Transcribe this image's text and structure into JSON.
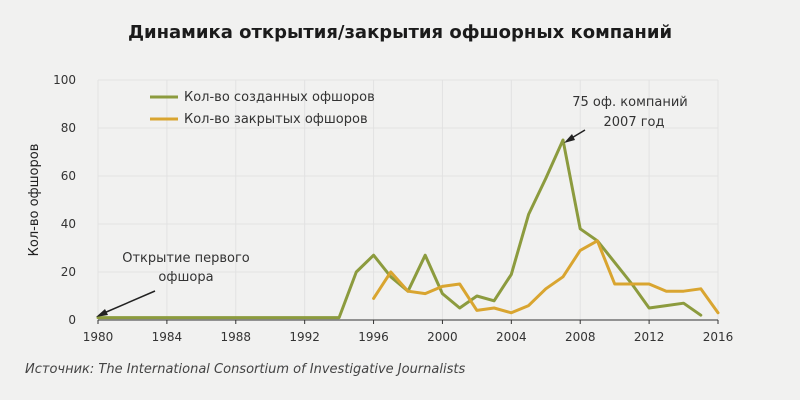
{
  "chart_data": {
    "type": "line",
    "title": "Динамика открытия/закрытия офшорных компаний",
    "ylabel": "Кол-во офшоров",
    "xlabel": "",
    "xlim": [
      1980,
      2016
    ],
    "ylim": [
      0,
      100
    ],
    "xticks": [
      "1980",
      "1984",
      "1988",
      "1992",
      "1996",
      "2000",
      "2004",
      "2008",
      "2012",
      "2016"
    ],
    "yticks": [
      "0",
      "20",
      "40",
      "60",
      "80",
      "100"
    ],
    "grid": true,
    "legend_position": "top-left",
    "series": [
      {
        "name": "Кол-во созданных офшоров",
        "color": "#8c9b3e",
        "x": [
          1980,
          1981,
          1982,
          1983,
          1984,
          1985,
          1986,
          1987,
          1988,
          1989,
          1990,
          1991,
          1992,
          1993,
          1994,
          1995,
          1996,
          1997,
          1998,
          1999,
          2000,
          2001,
          2002,
          2003,
          2004,
          2005,
          2006,
          2007,
          2008,
          2009,
          2010,
          2011,
          2012,
          2013,
          2014,
          2015
        ],
        "values": [
          1,
          1,
          1,
          1,
          1,
          1,
          1,
          1,
          1,
          1,
          1,
          1,
          1,
          1,
          1,
          20,
          27,
          18,
          12,
          27,
          11,
          5,
          10,
          8,
          19,
          44,
          59,
          75,
          38,
          33,
          24,
          15,
          5,
          6,
          7,
          2
        ]
      },
      {
        "name": "Кол-во закрытых офшоров",
        "color": "#d9a530",
        "x": [
          1996,
          1997,
          1998,
          1999,
          2000,
          2001,
          2002,
          2003,
          2004,
          2005,
          2006,
          2007,
          2008,
          2009,
          2010,
          2011,
          2012,
          2013,
          2014,
          2015,
          2016
        ],
        "values": [
          9,
          20,
          12,
          11,
          14,
          15,
          4,
          5,
          3,
          6,
          13,
          18,
          29,
          33,
          15,
          15,
          15,
          12,
          12,
          13,
          3
        ]
      }
    ],
    "annotations": [
      {
        "lines": [
          "75 оф. компаний",
          "2007 год"
        ],
        "x": 2007,
        "y": 75
      },
      {
        "lines": [
          "Открытие первого",
          "офшора"
        ],
        "x": 1980,
        "y": 1
      }
    ]
  },
  "source": "Источник: The International Consortium of Investigative Journalists"
}
